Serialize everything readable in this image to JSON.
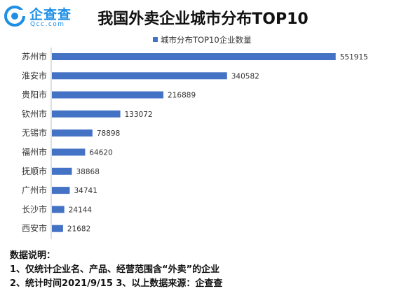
{
  "logo": {
    "name": "企查查",
    "domain": "Qcc.com",
    "brand_color": "#1e8fe6"
  },
  "chart_data": {
    "type": "bar",
    "orientation": "horizontal",
    "title": "我国外卖企业城市分布TOP10",
    "categories": [
      "苏州市",
      "淮安市",
      "贵阳市",
      "钦州市",
      "无锡市",
      "福州市",
      "抚顺市",
      "广州市",
      "长沙市",
      "西安市"
    ],
    "series": [
      {
        "name": "城市分布TOP10企业数量",
        "values": [
          551915,
          340582,
          216889,
          133072,
          78898,
          64620,
          38868,
          34741,
          24144,
          21682
        ],
        "color": "#4472c4"
      }
    ],
    "xlim": [
      0,
      600000
    ],
    "legend_position": "top",
    "grid": false,
    "data_labels": true
  },
  "notes": {
    "heading": "数据说明：",
    "line1": "1、仅统计企业名、产品、经营范围含“外卖”的企业",
    "line2": "2、统计时间2021/9/15    3、以上数据来源：企查查"
  }
}
